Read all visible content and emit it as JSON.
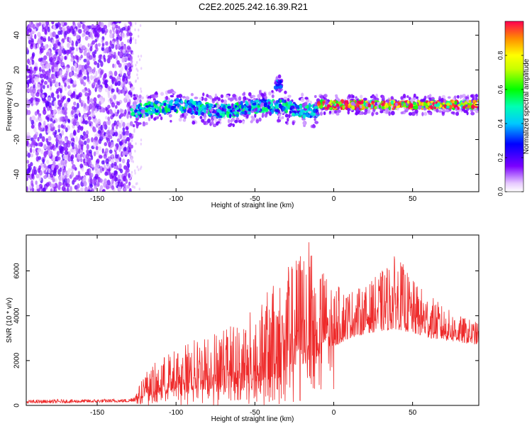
{
  "title": "C2E2.2025.242.16.39.R21",
  "colors": {
    "snr_line": "#ee2a2a",
    "spectral_points": "#6a0dff",
    "axis": "#000000"
  },
  "chart_data": [
    {
      "type": "heatmap",
      "name": "spectrogram",
      "xlabel": "Height of straight line (km)",
      "ylabel": "Frequency (Hz)",
      "xlim": [
        -195,
        92
      ],
      "ylim": [
        -50,
        48
      ],
      "xticks": [
        -150,
        -100,
        -50,
        0,
        50
      ],
      "xtick_labels": [
        "-150",
        "-100",
        "-50",
        "0",
        "50"
      ],
      "yticks": [
        -40,
        -20,
        0,
        20,
        40
      ],
      "ytick_labels": [
        "-40",
        "-20",
        "0",
        "20",
        "40"
      ],
      "grid": false,
      "colorbar": {
        "label": "Normalized spectral amplitude",
        "range": [
          0,
          1
        ],
        "ticks": [
          0.0,
          0.2,
          0.4,
          0.6,
          0.8
        ],
        "tick_labels": [
          "0.0",
          "0.2",
          "0.4",
          "0.6",
          "0.8"
        ]
      },
      "regions": [
        {
          "name": "noise",
          "x_range": [
            -195,
            -128
          ],
          "freq_range": [
            -50,
            48
          ],
          "amplitude": 0.12
        },
        {
          "name": "signal-onset",
          "x_range": [
            -128,
            -10
          ],
          "center_freq": -2,
          "half_width": 5,
          "amplitude": 0.45
        },
        {
          "name": "strong-signal",
          "x_range": [
            -10,
            92
          ],
          "center_freq": 0,
          "half_width": 3,
          "amplitude": 0.9
        },
        {
          "name": "isolated-feature",
          "x_range": [
            -37,
            -33
          ],
          "center_freq": 12,
          "half_width": 3,
          "amplitude": 0.3
        }
      ]
    },
    {
      "type": "line",
      "name": "snr",
      "xlabel": "Height of straight line (km)",
      "ylabel": "SNR (10 * v/v)",
      "xlim": [
        -195,
        92
      ],
      "ylim": [
        0,
        7600
      ],
      "xticks": [
        -150,
        -100,
        -50,
        0,
        50
      ],
      "xtick_labels": [
        "-150",
        "-100",
        "-50",
        "0",
        "50"
      ],
      "yticks": [
        0,
        2000,
        4000,
        6000
      ],
      "ytick_labels": [
        "0",
        "2000",
        "4000",
        "6000"
      ],
      "grid": false,
      "envelope": {
        "x": [
          -195,
          -130,
          -125,
          -120,
          -110,
          -100,
          -80,
          -60,
          -45,
          -35,
          -25,
          -18,
          -10,
          0,
          10,
          20,
          30,
          40,
          50,
          60,
          70,
          80,
          92
        ],
        "base": [
          100,
          150,
          200,
          400,
          500,
          600,
          700,
          900,
          1100,
          1200,
          1500,
          1900,
          2200,
          2600,
          3000,
          3200,
          3300,
          3400,
          3200,
          3000,
          2900,
          2800,
          2700
        ],
        "peak": [
          250,
          300,
          600,
          1500,
          2100,
          2600,
          3200,
          3800,
          4800,
          5800,
          6500,
          7600,
          6500,
          5400,
          5200,
          5300,
          6000,
          6800,
          5600,
          5000,
          4400,
          4000,
          3700
        ]
      }
    }
  ]
}
